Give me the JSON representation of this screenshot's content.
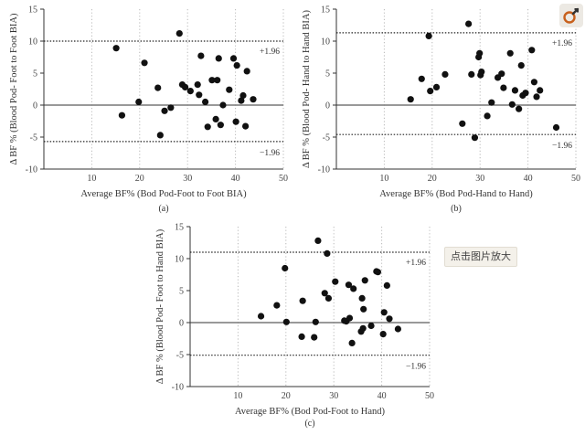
{
  "zoom_button": {
    "icon": "magnify-zoom-icon"
  },
  "image_tooltip": {
    "label": "点击图片放大"
  },
  "chart_data": [
    {
      "type": "scatter",
      "panel_label": "(a)",
      "xlabel": "Average BF% (Bod Pod-Foot to Foot BIA)",
      "ylabel": "Δ BF % (Blood Pod- Foot to Foot BIA)",
      "xlim": [
        0,
        50
      ],
      "ylim": [
        -10,
        15
      ],
      "xticks": [
        10,
        20,
        30,
        40,
        50
      ],
      "yticks": [
        -10,
        -5,
        0,
        5,
        10,
        15
      ],
      "reference_lines": [
        {
          "y": 10.0,
          "label": "+1.96"
        },
        {
          "y": -5.7,
          "label": "−1.96"
        }
      ],
      "points": [
        [
          15.1,
          8.9
        ],
        [
          16.3,
          -1.6
        ],
        [
          19.8,
          0.5
        ],
        [
          21.0,
          6.6
        ],
        [
          23.8,
          2.7
        ],
        [
          24.3,
          -4.7
        ],
        [
          25.2,
          -0.9
        ],
        [
          26.5,
          -0.4
        ],
        [
          28.3,
          11.2
        ],
        [
          28.9,
          3.2
        ],
        [
          29.5,
          2.8
        ],
        [
          30.6,
          2.2
        ],
        [
          32.1,
          3.2
        ],
        [
          32.4,
          1.6
        ],
        [
          32.8,
          7.7
        ],
        [
          33.7,
          0.5
        ],
        [
          34.2,
          -3.4
        ],
        [
          35.1,
          3.9
        ],
        [
          35.9,
          -2.2
        ],
        [
          36.2,
          3.9
        ],
        [
          36.5,
          7.3
        ],
        [
          36.9,
          -3.1
        ],
        [
          37.4,
          0.0
        ],
        [
          38.7,
          2.4
        ],
        [
          39.6,
          7.3
        ],
        [
          40.1,
          -2.6
        ],
        [
          40.3,
          6.2
        ],
        [
          41.2,
          0.7
        ],
        [
          41.6,
          1.5
        ],
        [
          42.1,
          -3.3
        ],
        [
          42.4,
          5.3
        ],
        [
          43.7,
          0.9
        ]
      ]
    },
    {
      "type": "scatter",
      "panel_label": "(b)",
      "xlabel": "Average BF% (Bod Pod-Hand to Hand)",
      "ylabel": "Δ BF % (Blood Pod- Hand to Hand BIA)",
      "xlim": [
        0,
        50
      ],
      "ylim": [
        -10,
        15
      ],
      "xticks": [
        10,
        20,
        30,
        40,
        50
      ],
      "yticks": [
        -10,
        -5,
        0,
        5,
        10,
        15
      ],
      "reference_lines": [
        {
          "y": 11.3,
          "label": "+1.96"
        },
        {
          "y": -4.6,
          "label": "−1.96"
        }
      ],
      "points": [
        [
          15.5,
          0.9
        ],
        [
          17.8,
          4.1
        ],
        [
          19.3,
          10.8
        ],
        [
          19.6,
          2.2
        ],
        [
          20.9,
          2.8
        ],
        [
          22.7,
          4.8
        ],
        [
          26.3,
          -2.9
        ],
        [
          27.6,
          12.7
        ],
        [
          28.2,
          4.8
        ],
        [
          28.9,
          -5.1
        ],
        [
          29.7,
          7.5
        ],
        [
          29.9,
          8.1
        ],
        [
          30.1,
          4.7
        ],
        [
          30.3,
          5.2
        ],
        [
          31.5,
          -1.7
        ],
        [
          32.4,
          0.4
        ],
        [
          33.7,
          4.3
        ],
        [
          34.5,
          4.9
        ],
        [
          34.9,
          2.7
        ],
        [
          36.3,
          8.1
        ],
        [
          36.7,
          0.1
        ],
        [
          37.3,
          2.3
        ],
        [
          38.1,
          -0.6
        ],
        [
          38.6,
          6.2
        ],
        [
          38.9,
          1.5
        ],
        [
          39.5,
          1.9
        ],
        [
          40.8,
          8.6
        ],
        [
          41.3,
          3.6
        ],
        [
          41.8,
          1.3
        ],
        [
          42.5,
          2.3
        ],
        [
          45.9,
          -3.5
        ]
      ]
    },
    {
      "type": "scatter",
      "panel_label": "(c)",
      "xlabel": "Average BF% (Bod Pod-Foot to Hand)",
      "ylabel": "Δ BF % (Blood Pod- Foot to Hand BIA)",
      "xlim": [
        0,
        50
      ],
      "ylim": [
        -10,
        15
      ],
      "xticks": [
        10,
        20,
        30,
        40,
        50
      ],
      "yticks": [
        -10,
        -5,
        0,
        5,
        10,
        15
      ],
      "reference_lines": [
        {
          "y": 11.0,
          "label": "+1.96"
        },
        {
          "y": -5.1,
          "label": "−1.96"
        }
      ],
      "points": [
        [
          14.8,
          1.0
        ],
        [
          18.1,
          2.7
        ],
        [
          19.8,
          8.5
        ],
        [
          20.1,
          0.1
        ],
        [
          23.3,
          -2.2
        ],
        [
          23.5,
          3.4
        ],
        [
          25.9,
          -2.3
        ],
        [
          26.2,
          0.1
        ],
        [
          28.1,
          4.6
        ],
        [
          28.6,
          10.8
        ],
        [
          28.9,
          3.8
        ],
        [
          30.3,
          6.4
        ],
        [
          32.6,
          0.2
        ],
        [
          33.1,
          5.9
        ],
        [
          33.3,
          0.7
        ],
        [
          33.8,
          -3.2
        ],
        [
          34.1,
          5.3
        ],
        [
          35.7,
          -1.4
        ],
        [
          35.9,
          3.8
        ],
        [
          36.2,
          2.1
        ],
        [
          36.5,
          6.6
        ],
        [
          37.8,
          -0.5
        ],
        [
          38.9,
          8.0
        ],
        [
          39.2,
          7.9
        ],
        [
          40.3,
          -1.8
        ],
        [
          40.5,
          1.6
        ],
        [
          41.1,
          5.8
        ],
        [
          41.6,
          0.6
        ],
        [
          43.4,
          -1.0
        ],
        [
          26.7,
          12.8
        ],
        [
          32.2,
          0.3
        ],
        [
          36.1,
          -0.9
        ]
      ]
    }
  ]
}
